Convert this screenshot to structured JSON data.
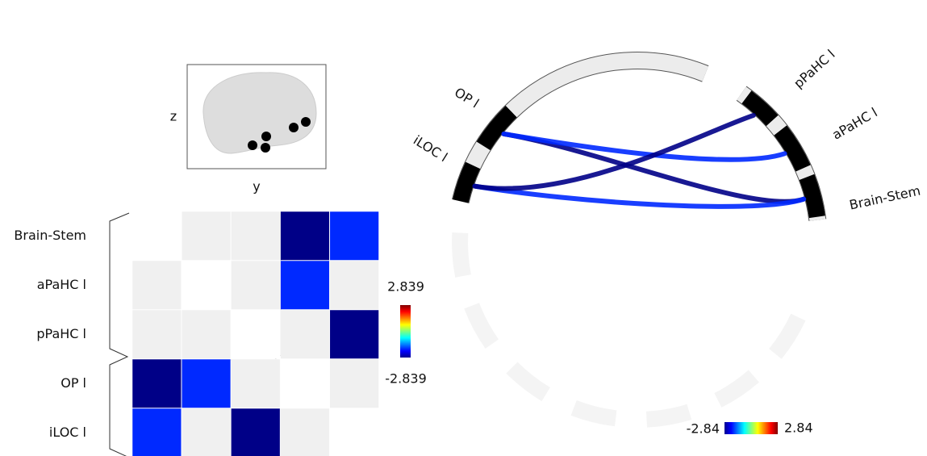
{
  "chart_data": [
    {
      "type": "heatmap",
      "categories": [
        "Brain-Stem",
        "aPaHC l",
        "pPaHC l",
        "OP l",
        "iLOC l"
      ],
      "values": [
        [
          null,
          null,
          null,
          -2.8,
          -1.9
        ],
        [
          null,
          null,
          null,
          -1.9,
          null
        ],
        [
          null,
          null,
          null,
          null,
          -2.8
        ],
        [
          -2.8,
          -1.9,
          null,
          null,
          null
        ],
        [
          -1.9,
          null,
          -2.8,
          null,
          null
        ]
      ],
      "clim": [
        -2.839,
        2.839
      ]
    },
    {
      "type": "chord",
      "categories": [
        "iLOC l",
        "OP l",
        "pPaHC l",
        "aPaHC l",
        "Brain-Stem"
      ],
      "links": [
        {
          "source": 4,
          "target": 1,
          "value": -2.8
        },
        {
          "source": 4,
          "target": 0,
          "value": -1.9
        },
        {
          "source": 3,
          "target": 1,
          "value": -1.9
        },
        {
          "source": 2,
          "target": 0,
          "value": -2.8
        }
      ],
      "clim": [
        -2.84,
        2.84
      ]
    }
  ],
  "brain": {
    "xlabel": "y",
    "ylabel": "z"
  }
}
